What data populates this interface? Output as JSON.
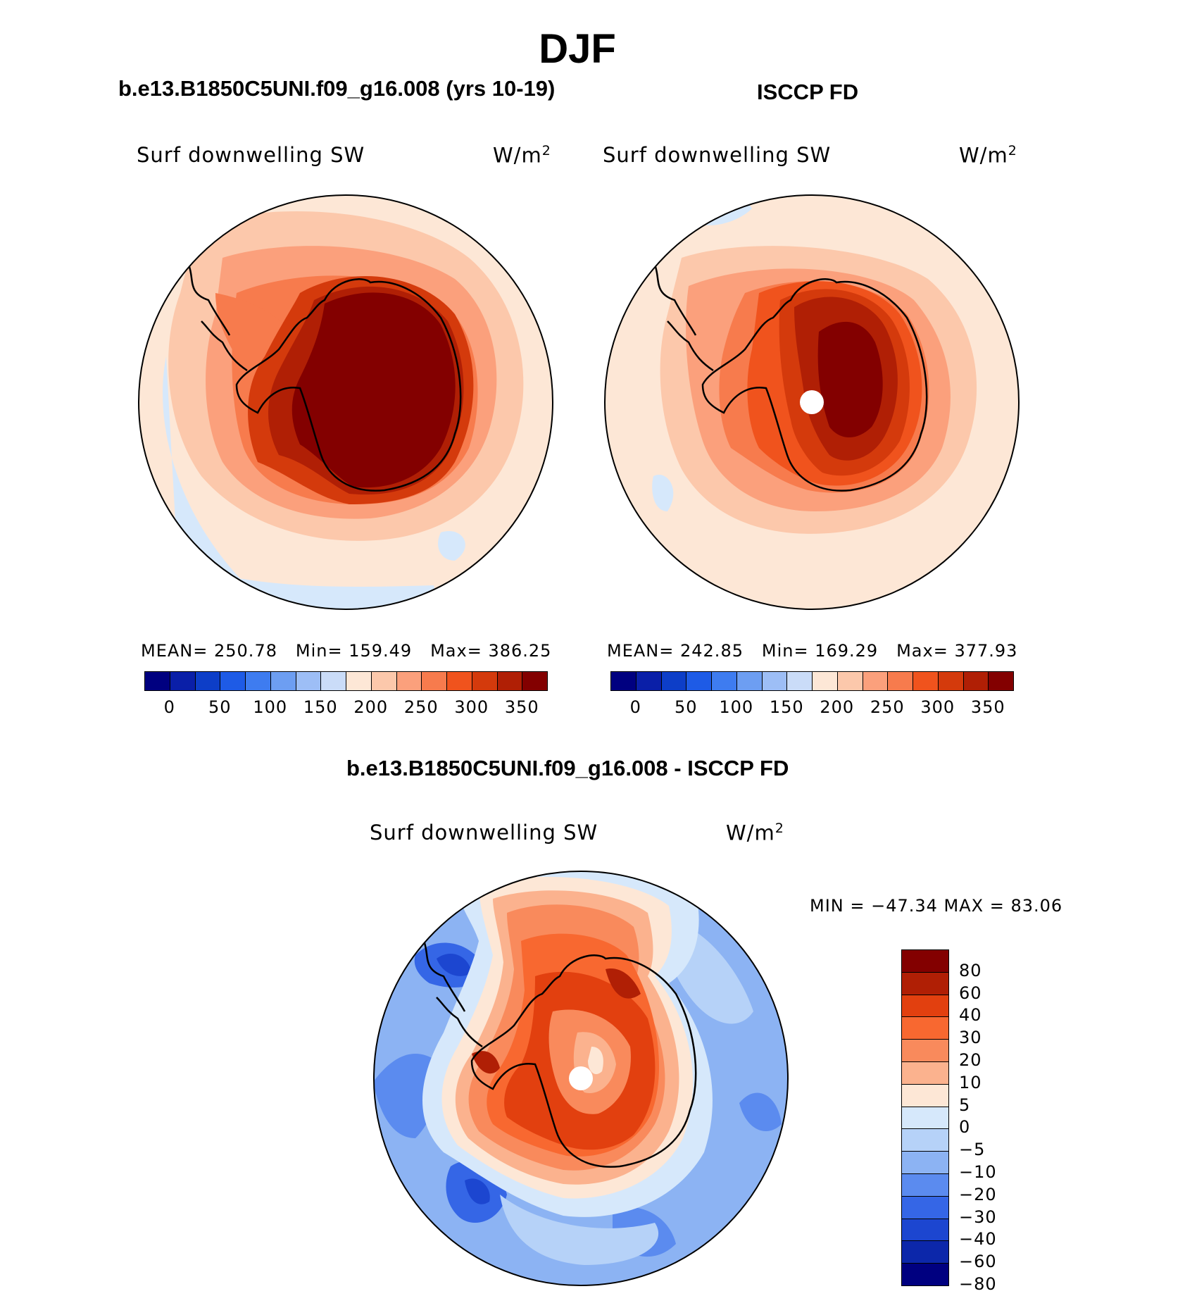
{
  "title": "DJF",
  "panels": [
    {
      "case_title": "b.e13.B1850C5UNI.f09_g16.008 (yrs 10-19)",
      "variable": "Surf  downwelling  SW",
      "units": "W/m",
      "units_sup": "2",
      "stats": {
        "mean_label": "MEAN=",
        "mean": "250.78",
        "min_label": "Min=",
        "min": "159.49",
        "max_label": "Max=",
        "max": "386.25"
      },
      "pole_hole": false
    },
    {
      "case_title": "ISCCP FD",
      "variable": "Surf  downwelling  SW",
      "units": "W/m",
      "units_sup": "2",
      "stats": {
        "mean_label": "MEAN=",
        "mean": "242.85",
        "min_label": "Min=",
        "min": "169.29",
        "max_label": "Max=",
        "max": "377.93"
      },
      "pole_hole": true
    }
  ],
  "abs_colorbar": {
    "colors": [
      "#000080",
      "#0a1fa8",
      "#0d3ec8",
      "#1e5be6",
      "#3e7cf0",
      "#6d9ef2",
      "#9dbef6",
      "#cadcf8",
      "#fde7d6",
      "#fcc8ab",
      "#fba07c",
      "#f77b4d",
      "#f0531d",
      "#d43a0c",
      "#b01f05",
      "#830000"
    ],
    "tick_labels": [
      "0",
      "50",
      "100",
      "150",
      "200",
      "250",
      "300",
      "350"
    ]
  },
  "diff_panel": {
    "case_title": "b.e13.B1850C5UNI.f09_g16.008 - ISCCP FD",
    "variable": "Surf  downwelling  SW",
    "units": "W/m",
    "units_sup": "2",
    "minmax": "MIN  =  −47.34  MAX  =    83.06",
    "colorbar_colors": [
      "#830000",
      "#b01f05",
      "#e2400f",
      "#f86830",
      "#f98a5c",
      "#fbb28e",
      "#fde7d6",
      "#d6e8fb",
      "#b6d2f8",
      "#8cb3f3",
      "#5b8bef",
      "#3566e6",
      "#1c46d0",
      "#0c27aa",
      "#000080"
    ],
    "tick_labels": [
      "80",
      "60",
      "40",
      "30",
      "20",
      "10",
      "5",
      "0",
      "−5",
      "−10",
      "−20",
      "−30",
      "−40",
      "−60",
      "−80"
    ]
  },
  "colors": {
    "ocean_model_far": "#fde7d6",
    "negative_band": "#d6e8fb",
    "coastline": "#000000"
  }
}
